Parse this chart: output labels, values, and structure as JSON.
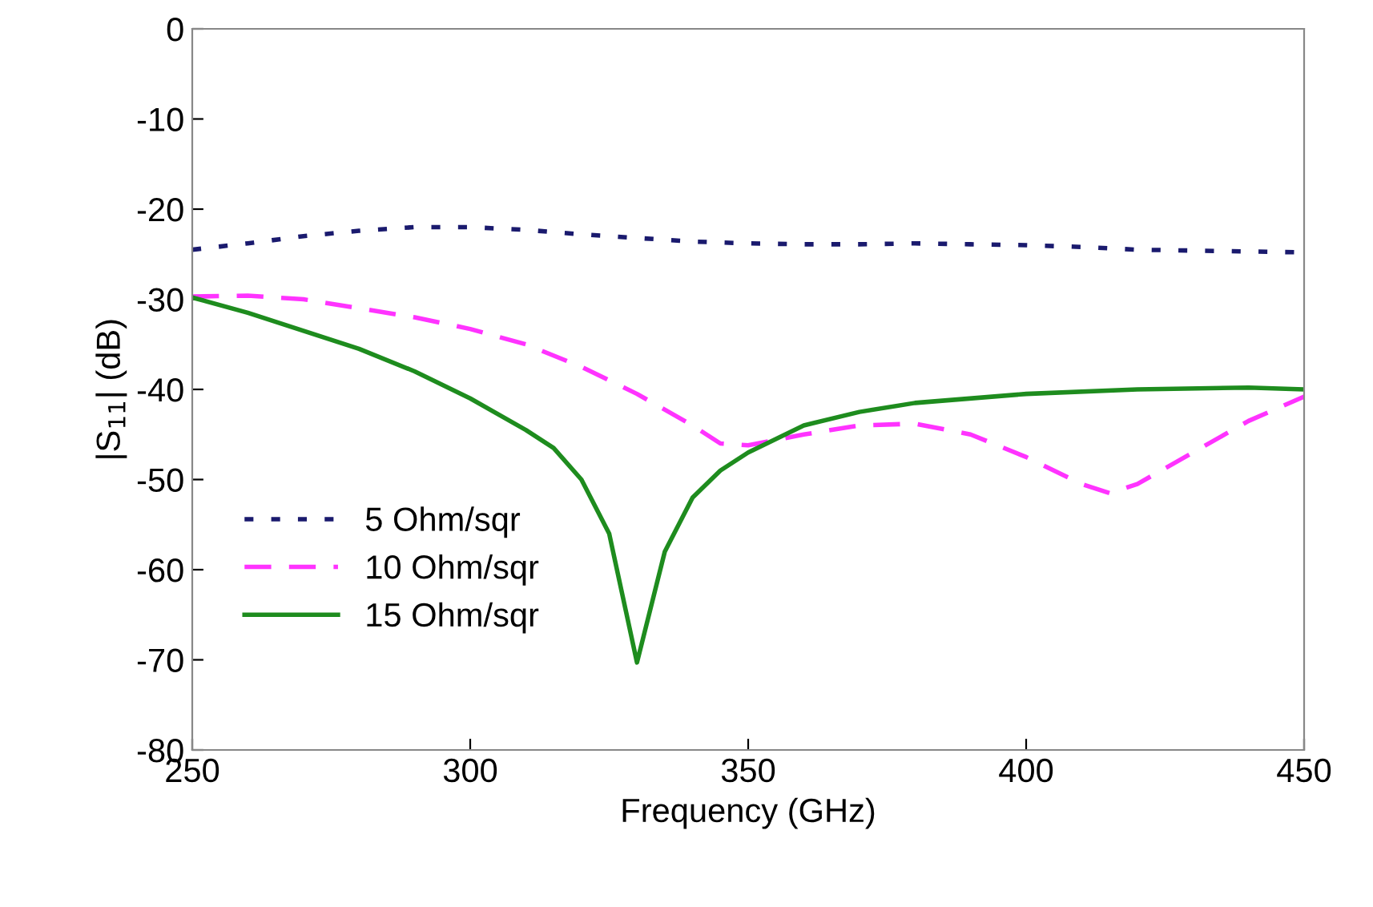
{
  "chart_data": {
    "type": "line",
    "xlabel": "Frequency (GHz)",
    "ylabel": "|S$_{11}$| (dB)",
    "xlim": [
      250,
      450
    ],
    "xticks": [
      250,
      300,
      350,
      400,
      450
    ],
    "ylim": [
      -80,
      0
    ],
    "yticks": [
      -80,
      -70,
      -60,
      -50,
      -40,
      -30,
      -20,
      -10,
      0
    ],
    "grid": false,
    "legend": "bottom left",
    "series": [
      {
        "name": "5 Ohm/sqr",
        "color": "#1a1a6e",
        "line_style": "dotted",
        "x": [
          250,
          260,
          270,
          280,
          290,
          300,
          310,
          320,
          330,
          340,
          350,
          360,
          370,
          380,
          390,
          400,
          410,
          420,
          430,
          440,
          450
        ],
        "values": [
          -24.5,
          -23.8,
          -23,
          -22.4,
          -22,
          -22,
          -22.3,
          -22.8,
          -23.2,
          -23.6,
          -23.8,
          -23.9,
          -23.9,
          -23.8,
          -23.9,
          -24,
          -24.2,
          -24.5,
          -24.6,
          -24.7,
          -24.8
        ]
      },
      {
        "name": "10 Ohm/sqr",
        "color": "#ff33ff",
        "line_style": "dashed",
        "x": [
          250,
          260,
          270,
          280,
          290,
          300,
          310,
          320,
          330,
          340,
          345,
          350,
          360,
          370,
          380,
          390,
          400,
          410,
          415,
          420,
          430,
          440,
          450
        ],
        "values": [
          -29.7,
          -29.6,
          -30,
          -31,
          -32,
          -33.3,
          -35,
          -37.5,
          -40.5,
          -44,
          -46,
          -46.2,
          -45,
          -44,
          -43.8,
          -45,
          -47.5,
          -50.5,
          -51.5,
          -50.5,
          -47,
          -43.5,
          -40.8
        ]
      },
      {
        "name": "15 Ohm/sqr",
        "color": "#1e8c1e",
        "line_style": "solid",
        "x": [
          250,
          260,
          270,
          280,
          290,
          300,
          310,
          315,
          320,
          325,
          330,
          335,
          340,
          345,
          350,
          360,
          370,
          380,
          400,
          420,
          440,
          450
        ],
        "values": [
          -29.8,
          -31.5,
          -33.5,
          -35.5,
          -38,
          -41,
          -44.5,
          -46.5,
          -50,
          -56,
          -70.3,
          -58,
          -52,
          -49,
          -47,
          -44,
          -42.5,
          -41.5,
          -40.5,
          -40,
          -39.8,
          -40
        ]
      }
    ]
  }
}
